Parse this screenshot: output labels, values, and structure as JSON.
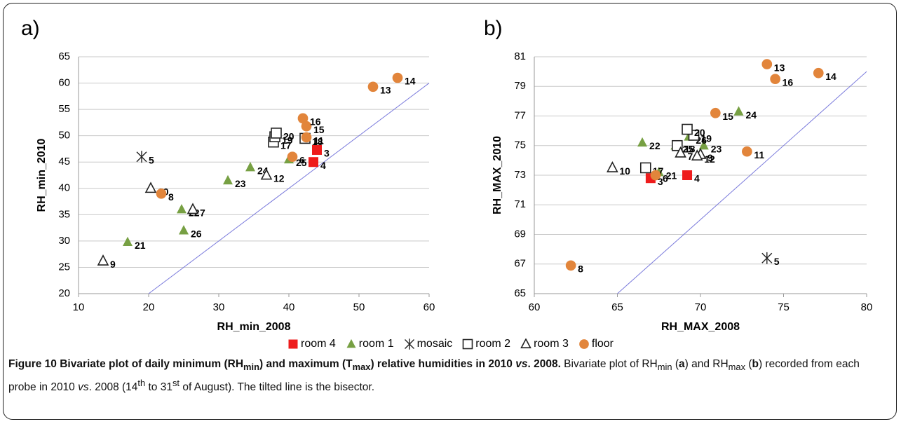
{
  "chart_data": [
    {
      "type": "scatter",
      "panel": "a)",
      "xlabel": "RH_min_2008",
      "ylabel": "RH_min_2010",
      "xlim": [
        10,
        60
      ],
      "ylim": [
        20,
        65
      ],
      "xticks": [
        10,
        20,
        30,
        40,
        50,
        60
      ],
      "yticks": [
        20,
        25,
        30,
        35,
        40,
        45,
        50,
        55,
        60,
        65
      ],
      "grid": true,
      "bisector": true,
      "series": [
        {
          "color": "#ee1c1c",
          "marker": "square-filled",
          "labels": [
            "3",
            "4"
          ],
          "x": [
            44,
            43.5
          ],
          "y": [
            47.3,
            45
          ]
        },
        {
          "color": "#77a043",
          "marker": "triangle-filled",
          "labels": [
            "21",
            "22",
            "23",
            "24",
            "25",
            "26"
          ],
          "x": [
            17,
            24.7,
            31.3,
            34.5,
            40,
            25
          ],
          "y": [
            29.8,
            36,
            41.5,
            44,
            45.5,
            32
          ]
        },
        {
          "color": "#222222",
          "marker": "asterisk",
          "labels": [
            "5"
          ],
          "x": [
            19
          ],
          "y": [
            46
          ]
        },
        {
          "color": "#222222",
          "marker": "square-open",
          "labels": [
            "17",
            "18",
            "19",
            "20"
          ],
          "x": [
            37.8,
            42.3,
            38,
            38.2
          ],
          "y": [
            48.8,
            49.5,
            49.8,
            50.5
          ]
        },
        {
          "color": "#222222",
          "marker": "triangle-open",
          "labels": [
            "7",
            "9",
            "10",
            "12"
          ],
          "x": [
            26.3,
            13.5,
            20.3,
            36.8
          ],
          "y": [
            36,
            26.2,
            40,
            42.5
          ]
        },
        {
          "color": "#e2853b",
          "marker": "circle",
          "labels": [
            "6",
            "8",
            "11",
            "13",
            "14",
            "15",
            "16"
          ],
          "x": [
            40.5,
            21.8,
            42.5,
            52,
            55.5,
            42.5,
            42
          ],
          "y": [
            46,
            39,
            49.7,
            59.3,
            61,
            51.8,
            53.3
          ]
        }
      ]
    },
    {
      "type": "scatter",
      "panel": "b)",
      "xlabel": "RH_MAX_2008",
      "ylabel": "RH_MAX_2010",
      "xlim": [
        60,
        80
      ],
      "ylim": [
        65,
        81
      ],
      "xticks": [
        60,
        65,
        70,
        75,
        80
      ],
      "yticks": [
        65,
        67,
        69,
        71,
        73,
        75,
        77,
        79,
        81
      ],
      "grid": true,
      "bisector": true,
      "series": [
        {
          "color": "#ee1c1c",
          "marker": "square-filled",
          "labels": [
            "3",
            "4"
          ],
          "x": [
            67,
            69.2
          ],
          "y": [
            72.8,
            73
          ]
        },
        {
          "color": "#77a043",
          "marker": "triangle-filled",
          "labels": [
            "21",
            "22",
            "23",
            "24",
            "25",
            "26"
          ],
          "x": [
            67.5,
            66.5,
            70.2,
            72.3,
            68.5,
            69.3
          ],
          "y": [
            73.2,
            75.2,
            75,
            77.3,
            75,
            75.6
          ]
        },
        {
          "color": "#222222",
          "marker": "asterisk",
          "labels": [
            "5"
          ],
          "x": [
            74
          ],
          "y": [
            67.4
          ]
        },
        {
          "color": "#222222",
          "marker": "square-open",
          "labels": [
            "17",
            "18",
            "19",
            "20"
          ],
          "x": [
            66.7,
            68.6,
            69.6,
            69.2
          ],
          "y": [
            73.5,
            75,
            75.7,
            76.1
          ]
        },
        {
          "color": "#222222",
          "marker": "triangle-open",
          "labels": [
            "7",
            "9",
            "10",
            "12"
          ],
          "x": [
            68.8,
            70,
            64.7,
            69.8
          ],
          "y": [
            74.5,
            74.4,
            73.5,
            74.3
          ]
        },
        {
          "color": "#e2853b",
          "marker": "circle",
          "labels": [
            "6",
            "8",
            "11",
            "13",
            "14",
            "15",
            "16"
          ],
          "x": [
            67.3,
            62.2,
            72.8,
            74,
            77.1,
            70.9,
            74.5
          ],
          "y": [
            73,
            66.9,
            74.6,
            80.5,
            79.9,
            77.2,
            79.5
          ]
        }
      ]
    }
  ],
  "legend": [
    {
      "name": "room 4",
      "color": "#ee1c1c",
      "marker": "square-filled"
    },
    {
      "name": "room 1",
      "color": "#77a043",
      "marker": "triangle-filled"
    },
    {
      "name": "mosaic",
      "color": "#222222",
      "marker": "asterisk"
    },
    {
      "name": "room 2",
      "color": "#222222",
      "marker": "square-open"
    },
    {
      "name": "room 3",
      "color": "#222222",
      "marker": "triangle-open"
    },
    {
      "name": "floor",
      "color": "#e2853b",
      "marker": "circle"
    }
  ],
  "caption": [
    {
      "text": "Figure 10 Bivariate plot of daily minimum (RH",
      "style": "bold"
    },
    {
      "text": "min",
      "style": "bold sub"
    },
    {
      "text": ") and maximum (T",
      "style": "bold"
    },
    {
      "text": "max",
      "style": "bold sub"
    },
    {
      "text": ") relative humidities in 2010 ",
      "style": "bold"
    },
    {
      "text": "vs",
      "style": "bold italic"
    },
    {
      "text": ". 2008.",
      "style": "bold"
    },
    {
      "text": " Bivariate plot of RH",
      "style": "normal"
    },
    {
      "text": "min",
      "style": "sub"
    },
    {
      "text": " (",
      "style": "normal"
    },
    {
      "text": "a",
      "style": "bold"
    },
    {
      "text": ") and RH",
      "style": "normal"
    },
    {
      "text": "max",
      "style": "sub"
    },
    {
      "text": " (",
      "style": "normal"
    },
    {
      "text": "b",
      "style": "bold"
    },
    {
      "text": ") recorded from each probe in 2010 ",
      "style": "normal"
    },
    {
      "text": "vs",
      "style": "italic"
    },
    {
      "text": ". 2008 (14",
      "style": "normal"
    },
    {
      "text": "th",
      "style": "sup"
    },
    {
      "text": " to 31",
      "style": "normal"
    },
    {
      "text": "st",
      "style": "sup"
    },
    {
      "text": " of August). The tilted line is the bisector.",
      "style": "normal"
    }
  ]
}
